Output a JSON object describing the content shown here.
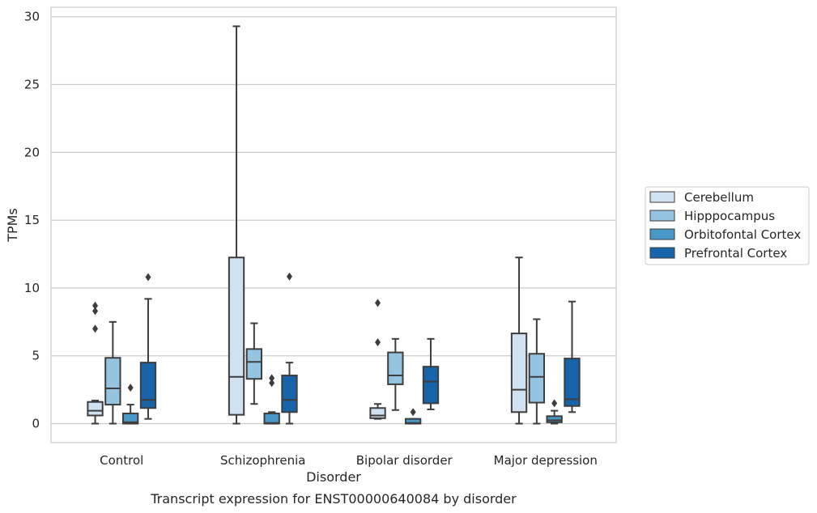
{
  "chart_data": {
    "type": "box",
    "xlabel": "Disorder",
    "ylabel": "TPMs",
    "caption": "Transcript expression for ENST00000640084 by disorder",
    "ylim": [
      -1.4,
      30.7
    ],
    "yticks": [
      0,
      5,
      10,
      15,
      20,
      25,
      30
    ],
    "grid": "horizontal",
    "legend_position": "right",
    "categories": [
      "Control",
      "Schizophrenia",
      "Bipolar disorder",
      "Major depression"
    ],
    "series": [
      {
        "name": "Cerebellum",
        "color": "#d0e1f2",
        "boxes": [
          {
            "whislo": 0.0,
            "q1": 0.6,
            "med": 0.95,
            "q3": 1.6,
            "whishi": 1.7,
            "fliers": [
              7.0,
              8.3,
              8.7
            ]
          },
          {
            "whislo": 0.0,
            "q1": 0.65,
            "med": 3.45,
            "q3": 12.25,
            "whishi": 29.3,
            "fliers": []
          },
          {
            "whislo": 0.35,
            "q1": 0.4,
            "med": 0.6,
            "q3": 1.15,
            "whishi": 1.45,
            "fliers": [
              6.0,
              8.9
            ]
          },
          {
            "whislo": 0.0,
            "q1": 0.85,
            "med": 2.5,
            "q3": 6.65,
            "whishi": 12.25,
            "fliers": []
          }
        ]
      },
      {
        "name": "Hipppocampus",
        "color": "#94c4df",
        "boxes": [
          {
            "whislo": 0.0,
            "q1": 1.4,
            "med": 2.6,
            "q3": 4.85,
            "whishi": 7.5,
            "fliers": []
          },
          {
            "whislo": 1.45,
            "q1": 3.3,
            "med": 4.55,
            "q3": 5.5,
            "whishi": 7.4,
            "fliers": []
          },
          {
            "whislo": 1.0,
            "q1": 2.9,
            "med": 3.55,
            "q3": 5.25,
            "whishi": 6.25,
            "fliers": []
          },
          {
            "whislo": 0.0,
            "q1": 1.55,
            "med": 3.45,
            "q3": 5.15,
            "whishi": 7.7,
            "fliers": []
          }
        ]
      },
      {
        "name": "Orbitofontal Cortex",
        "color": "#4a98c9",
        "boxes": [
          {
            "whislo": 0.0,
            "q1": 0.0,
            "med": 0.1,
            "q3": 0.75,
            "whishi": 1.4,
            "fliers": [
              2.65
            ]
          },
          {
            "whislo": 0.0,
            "q1": 0.0,
            "med": 0.05,
            "q3": 0.75,
            "whishi": 0.85,
            "fliers": [
              3.0,
              3.35
            ]
          },
          {
            "whislo": 0.0,
            "q1": 0.0,
            "med": 0.05,
            "q3": 0.35,
            "whishi": 0.35,
            "fliers": [
              0.85
            ]
          },
          {
            "whislo": 0.0,
            "q1": 0.1,
            "med": 0.25,
            "q3": 0.55,
            "whishi": 0.95,
            "fliers": [
              1.5
            ]
          }
        ]
      },
      {
        "name": "Prefrontal Cortex",
        "color": "#1764ab",
        "boxes": [
          {
            "whislo": 0.35,
            "q1": 1.15,
            "med": 1.75,
            "q3": 4.5,
            "whishi": 9.2,
            "fliers": [
              10.8
            ]
          },
          {
            "whislo": 0.0,
            "q1": 0.85,
            "med": 1.75,
            "q3": 3.55,
            "whishi": 4.5,
            "fliers": [
              10.85
            ]
          },
          {
            "whislo": 1.05,
            "q1": 1.5,
            "med": 3.1,
            "q3": 4.2,
            "whishi": 6.25,
            "fliers": []
          },
          {
            "whislo": 0.85,
            "q1": 1.3,
            "med": 1.8,
            "q3": 4.8,
            "whishi": 9.0,
            "fliers": []
          }
        ]
      }
    ]
  }
}
